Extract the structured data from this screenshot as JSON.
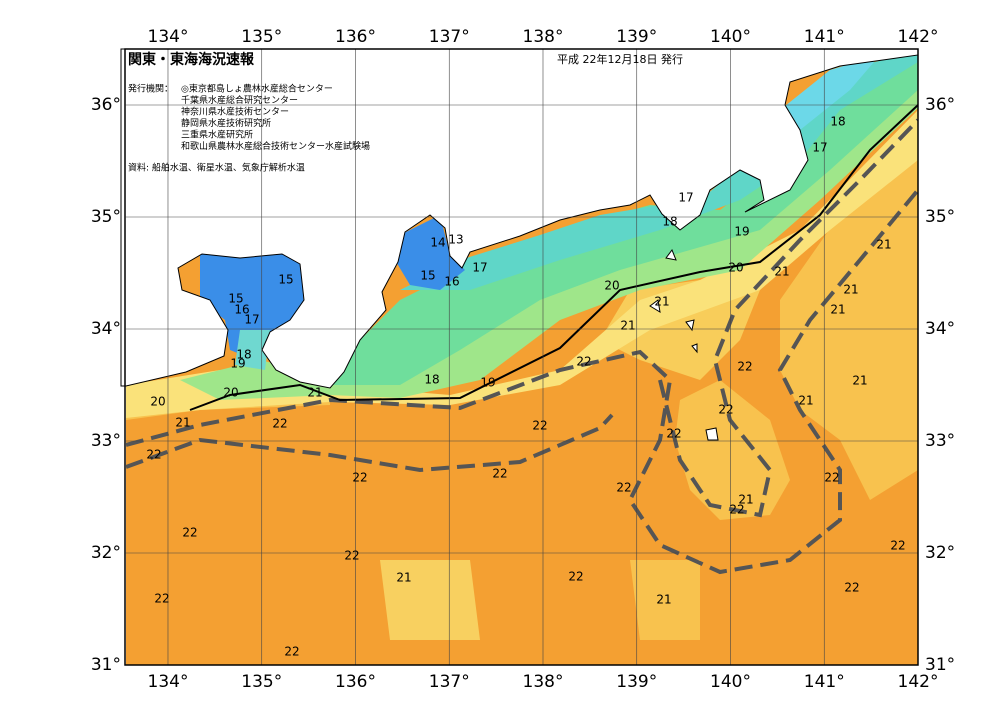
{
  "header": {
    "title": "関東・東海海況速報",
    "issue_date": "平成 22年12月18日 発行"
  },
  "issuers": {
    "label": "発行機関：",
    "items": [
      "◎東京都島しょ農林水産総合センター",
      "千葉県水産総合研究センター",
      "神奈川県水産技術センター",
      "静岡県水産技術研究所",
      "三重県水産研究所",
      "和歌山県農林水産総合技術センター水産試験場"
    ]
  },
  "source": "資料: 船舶水温、衛星水温、気象庁解析水温",
  "map": {
    "xlim": [
      133.55,
      142
    ],
    "ylim": [
      31,
      36.5
    ],
    "xticks": [
      {
        "value": 134,
        "label": "134°"
      },
      {
        "value": 135,
        "label": "135°"
      },
      {
        "value": 136,
        "label": "136°"
      },
      {
        "value": 137,
        "label": "137°"
      },
      {
        "value": 138,
        "label": "138°"
      },
      {
        "value": 139,
        "label": "139°"
      },
      {
        "value": 140,
        "label": "140°"
      },
      {
        "value": 141,
        "label": "141°"
      },
      {
        "value": 142,
        "label": "142°"
      }
    ],
    "yticks": [
      {
        "value": 31,
        "label": "31°"
      },
      {
        "value": 32,
        "label": "32°"
      },
      {
        "value": 33,
        "label": "33°"
      },
      {
        "value": 34,
        "label": "34°"
      },
      {
        "value": 35,
        "label": "35°"
      },
      {
        "value": 36,
        "label": "36°"
      }
    ],
    "contour_labels": [
      18,
      17,
      17,
      18,
      19,
      14,
      13,
      15,
      15,
      16,
      17,
      20,
      21,
      21,
      20,
      21,
      21,
      15,
      16,
      17,
      21,
      21,
      18,
      19,
      22,
      22,
      18,
      19,
      21,
      20,
      21,
      20,
      21,
      22,
      21,
      22,
      22,
      22,
      22,
      22,
      22,
      22,
      22,
      21,
      22,
      22,
      22,
      22,
      21,
      22,
      22,
      22,
      21,
      22
    ]
  }
}
